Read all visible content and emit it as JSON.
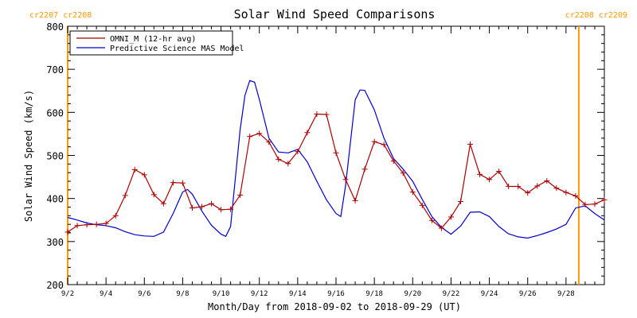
{
  "chart_data": {
    "type": "line",
    "title": "Solar Wind Speed Comparisons",
    "xlabel": "Month/Day from 2018-09-02 to 2018-09-29 (UT)",
    "ylabel": "Solar Wind Speed (km/s)",
    "xlim": [
      "2018-09-02",
      "2018-09-29"
    ],
    "ylim": [
      200,
      800
    ],
    "x_tick_labels": [
      "9/2",
      "9/4",
      "9/6",
      "9/8",
      "9/10",
      "9/12",
      "9/14",
      "9/16",
      "9/18",
      "9/20",
      "9/22",
      "9/24",
      "9/26",
      "9/28"
    ],
    "y_tick_labels": [
      "200",
      "300",
      "400",
      "500",
      "600",
      "700",
      "800"
    ],
    "grid": false,
    "legend_position": "top-left",
    "carrington_markers": [
      {
        "label": "cr2207 cr2208",
        "x": "2018-09-02",
        "color": "#ff9900"
      },
      {
        "label": "cr2208 cr2209",
        "x": "2018-09-28T16:00",
        "color": "#ff9900"
      }
    ],
    "series": [
      {
        "name": "OMNI_M (12-hr avg)",
        "color": "#aa0000",
        "marker": "+",
        "points": [
          [
            "2018-09-02T00:00",
            322
          ],
          [
            "2018-09-02T12:00",
            337
          ],
          [
            "2018-09-03T00:00",
            339
          ],
          [
            "2018-09-03T12:00",
            340
          ],
          [
            "2018-09-04T00:00",
            342
          ],
          [
            "2018-09-04T12:00",
            360
          ],
          [
            "2018-09-05T00:00",
            407
          ],
          [
            "2018-09-05T12:00",
            467
          ],
          [
            "2018-09-06T00:00",
            455
          ],
          [
            "2018-09-06T12:00",
            409
          ],
          [
            "2018-09-07T00:00",
            388
          ],
          [
            "2018-09-07T12:00",
            437
          ],
          [
            "2018-09-08T00:00",
            436
          ],
          [
            "2018-09-08T12:00",
            378
          ],
          [
            "2018-09-09T00:00",
            381
          ],
          [
            "2018-09-09T12:00",
            388
          ],
          [
            "2018-09-10T00:00",
            374
          ],
          [
            "2018-09-10T12:00",
            375
          ],
          [
            "2018-09-11T00:00",
            408
          ],
          [
            "2018-09-11T12:00",
            544
          ],
          [
            "2018-09-12T00:00",
            551
          ],
          [
            "2018-09-12T12:00",
            531
          ],
          [
            "2018-09-13T00:00",
            491
          ],
          [
            "2018-09-13T12:00",
            481
          ],
          [
            "2018-09-14T00:00",
            509
          ],
          [
            "2018-09-14T12:00",
            553
          ],
          [
            "2018-09-15T00:00",
            596
          ],
          [
            "2018-09-15T12:00",
            595
          ],
          [
            "2018-09-16T00:00",
            506
          ],
          [
            "2018-09-16T12:00",
            444
          ],
          [
            "2018-09-17T00:00",
            395
          ],
          [
            "2018-09-17T12:00",
            468
          ],
          [
            "2018-09-18T00:00",
            532
          ],
          [
            "2018-09-18T12:00",
            525
          ],
          [
            "2018-09-19T00:00",
            487
          ],
          [
            "2018-09-19T12:00",
            459
          ],
          [
            "2018-09-20T00:00",
            415
          ],
          [
            "2018-09-20T12:00",
            384
          ],
          [
            "2018-09-21T00:00",
            349
          ],
          [
            "2018-09-21T12:00",
            331
          ],
          [
            "2018-09-22T00:00",
            357
          ],
          [
            "2018-09-22T12:00",
            393
          ],
          [
            "2018-09-23T00:00",
            526
          ],
          [
            "2018-09-23T12:00",
            456
          ],
          [
            "2018-09-24T00:00",
            444
          ],
          [
            "2018-09-24T12:00",
            463
          ],
          [
            "2018-09-25T00:00",
            428
          ],
          [
            "2018-09-25T12:00",
            428
          ],
          [
            "2018-09-26T00:00",
            413
          ],
          [
            "2018-09-26T12:00",
            429
          ],
          [
            "2018-09-27T00:00",
            441
          ],
          [
            "2018-09-27T12:00",
            424
          ],
          [
            "2018-09-28T00:00",
            414
          ],
          [
            "2018-09-28T12:00",
            406
          ],
          [
            "2018-09-29T00:00",
            386
          ],
          [
            "2018-09-29T12:00",
            387
          ],
          [
            "2018-09-30T00:00",
            397
          ]
        ]
      },
      {
        "name": "Predictive Science MAS Model",
        "color": "#0000cc",
        "marker": "none",
        "points": [
          [
            "2018-09-02T00:00",
            356
          ],
          [
            "2018-09-02T12:00",
            350
          ],
          [
            "2018-09-03T00:00",
            343
          ],
          [
            "2018-09-03T12:00",
            339
          ],
          [
            "2018-09-04T00:00",
            337
          ],
          [
            "2018-09-04T12:00",
            332
          ],
          [
            "2018-09-05T00:00",
            323
          ],
          [
            "2018-09-05T12:00",
            316
          ],
          [
            "2018-09-06T00:00",
            313
          ],
          [
            "2018-09-06T12:00",
            312
          ],
          [
            "2018-09-07T00:00",
            322
          ],
          [
            "2018-09-07T12:00",
            365
          ],
          [
            "2018-09-08T00:00",
            415
          ],
          [
            "2018-09-08T06:00",
            421
          ],
          [
            "2018-09-08T12:00",
            410
          ],
          [
            "2018-09-09T00:00",
            371
          ],
          [
            "2018-09-09T12:00",
            338
          ],
          [
            "2018-09-10T00:00",
            317
          ],
          [
            "2018-09-10T06:00",
            312
          ],
          [
            "2018-09-10T12:00",
            335
          ],
          [
            "2018-09-11T00:00",
            560
          ],
          [
            "2018-09-11T06:00",
            640
          ],
          [
            "2018-09-11T12:00",
            674
          ],
          [
            "2018-09-11T18:00",
            670
          ],
          [
            "2018-09-12T00:00",
            630
          ],
          [
            "2018-09-12T12:00",
            540
          ],
          [
            "2018-09-13T00:00",
            508
          ],
          [
            "2018-09-13T12:00",
            506
          ],
          [
            "2018-09-14T00:00",
            514
          ],
          [
            "2018-09-14T12:00",
            485
          ],
          [
            "2018-09-15T00:00",
            440
          ],
          [
            "2018-09-15T12:00",
            397
          ],
          [
            "2018-09-16T00:00",
            365
          ],
          [
            "2018-09-16T06:00",
            358
          ],
          [
            "2018-09-16T12:00",
            430
          ],
          [
            "2018-09-17T00:00",
            629
          ],
          [
            "2018-09-17T06:00",
            652
          ],
          [
            "2018-09-17T12:00",
            651
          ],
          [
            "2018-09-18T00:00",
            606
          ],
          [
            "2018-09-18T12:00",
            540
          ],
          [
            "2018-09-19T00:00",
            493
          ],
          [
            "2018-09-19T12:00",
            468
          ],
          [
            "2018-09-20T00:00",
            440
          ],
          [
            "2018-09-20T12:00",
            398
          ],
          [
            "2018-09-21T00:00",
            358
          ],
          [
            "2018-09-21T12:00",
            333
          ],
          [
            "2018-09-22T00:00",
            317
          ],
          [
            "2018-09-22T12:00",
            336
          ],
          [
            "2018-09-23T00:00",
            368
          ],
          [
            "2018-09-23T12:00",
            369
          ],
          [
            "2018-09-24T00:00",
            358
          ],
          [
            "2018-09-24T12:00",
            335
          ],
          [
            "2018-09-25T00:00",
            318
          ],
          [
            "2018-09-25T12:00",
            311
          ],
          [
            "2018-09-26T00:00",
            308
          ],
          [
            "2018-09-26T12:00",
            314
          ],
          [
            "2018-09-27T00:00",
            321
          ],
          [
            "2018-09-27T12:00",
            329
          ],
          [
            "2018-09-28T00:00",
            340
          ],
          [
            "2018-09-28T12:00",
            378
          ],
          [
            "2018-09-29T00:00",
            383
          ],
          [
            "2018-09-29T12:00",
            365
          ],
          [
            "2018-09-30T00:00",
            350
          ]
        ]
      }
    ]
  }
}
